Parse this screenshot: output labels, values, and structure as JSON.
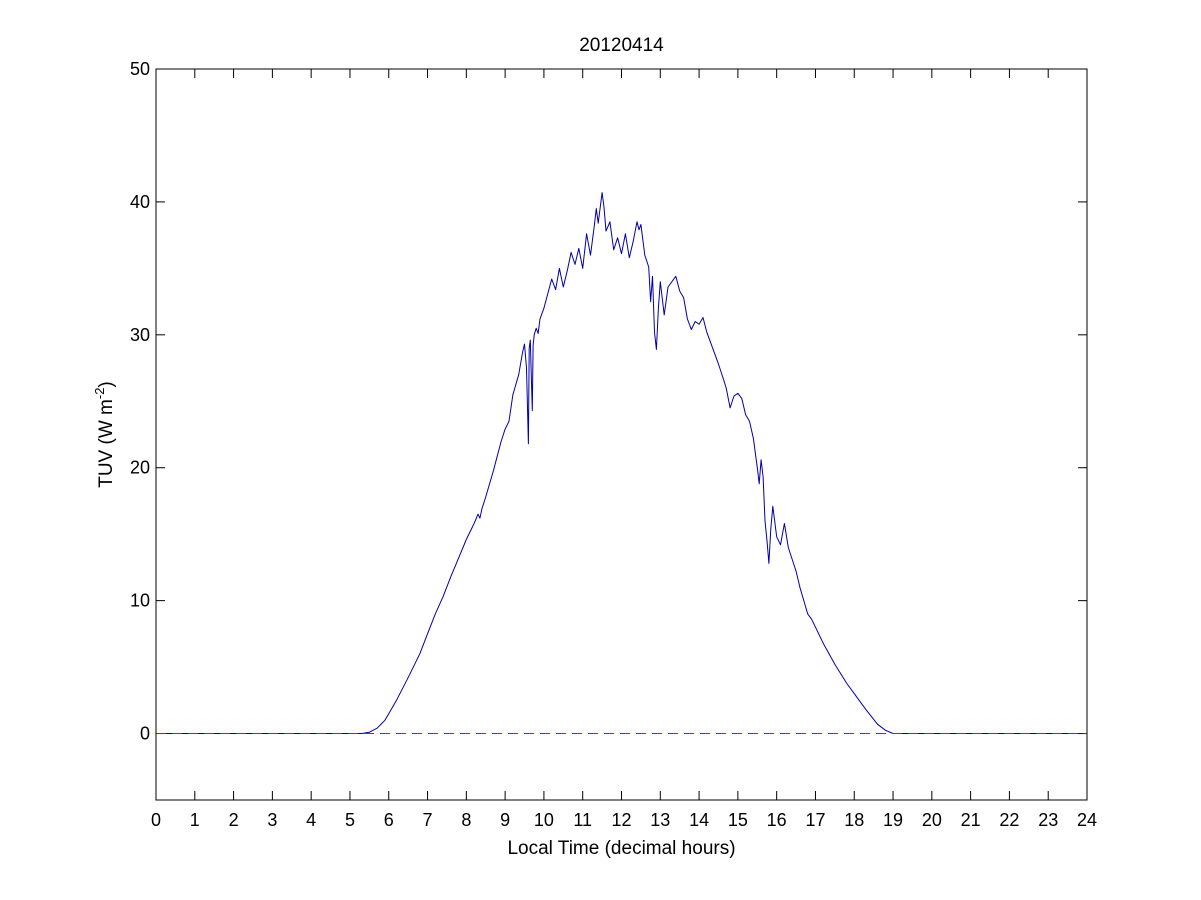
{
  "chart_data": {
    "type": "line",
    "title": "20120414",
    "xlabel": "Local Time (decimal hours)",
    "ylabel": {
      "prefix": "TUV (W m",
      "superscript": "-2",
      "suffix": ")"
    },
    "xlim": [
      0,
      24
    ],
    "ylim": [
      -5,
      50
    ],
    "xticks": [
      0,
      1,
      2,
      3,
      4,
      5,
      6,
      7,
      8,
      9,
      10,
      11,
      12,
      13,
      14,
      15,
      16,
      17,
      18,
      19,
      20,
      21,
      22,
      23,
      24
    ],
    "yticks": [
      0,
      10,
      20,
      30,
      40,
      50
    ],
    "grid": false,
    "legend": "none",
    "series": [
      {
        "color": "#0000aa",
        "style": "solid",
        "x": [
          0,
          5.3,
          5.5,
          5.7,
          5.9,
          6.0,
          6.2,
          6.5,
          6.8,
          7.0,
          7.2,
          7.4,
          7.6,
          7.8,
          8.0,
          8.2,
          8.3,
          8.35,
          8.4,
          8.5,
          8.7,
          8.9,
          9.0,
          9.1,
          9.2,
          9.35,
          9.45,
          9.5,
          9.55,
          9.6,
          9.62,
          9.65,
          9.7,
          9.72,
          9.75,
          9.8,
          9.85,
          9.9,
          10.0,
          10.1,
          10.2,
          10.3,
          10.4,
          10.5,
          10.6,
          10.7,
          10.8,
          10.9,
          11.0,
          11.1,
          11.2,
          11.3,
          11.35,
          11.4,
          11.5,
          11.55,
          11.6,
          11.7,
          11.8,
          11.9,
          12.0,
          12.1,
          12.2,
          12.3,
          12.4,
          12.45,
          12.5,
          12.6,
          12.7,
          12.75,
          12.8,
          12.85,
          12.9,
          12.95,
          13.0,
          13.1,
          13.2,
          13.3,
          13.4,
          13.5,
          13.6,
          13.7,
          13.8,
          13.9,
          14.0,
          14.1,
          14.2,
          14.3,
          14.4,
          14.5,
          14.6,
          14.7,
          14.8,
          14.9,
          15.0,
          15.1,
          15.2,
          15.3,
          15.4,
          15.5,
          15.55,
          15.6,
          15.65,
          15.7,
          15.75,
          15.8,
          15.85,
          15.9,
          16.0,
          16.1,
          16.2,
          16.3,
          16.4,
          16.5,
          16.6,
          16.7,
          16.8,
          16.9,
          17.0,
          17.2,
          17.5,
          17.8,
          18.0,
          18.3,
          18.6,
          18.8,
          19.0,
          19.2,
          24
        ],
        "y": [
          0,
          0,
          0.1,
          0.4,
          1.0,
          1.5,
          2.5,
          4.2,
          6.0,
          7.5,
          9.0,
          10.3,
          11.8,
          13.2,
          14.6,
          15.8,
          16.5,
          16.2,
          16.9,
          17.8,
          19.8,
          22.0,
          22.9,
          23.5,
          25.5,
          27.0,
          28.7,
          29.3,
          27.5,
          21.8,
          29.0,
          29.6,
          24.3,
          29.2,
          30.0,
          30.5,
          30.1,
          31.2,
          32.0,
          33.1,
          34.2,
          33.4,
          35.0,
          33.6,
          34.8,
          36.2,
          35.3,
          36.5,
          35.0,
          37.6,
          36.0,
          38.2,
          39.5,
          38.4,
          40.7,
          39.6,
          37.8,
          38.5,
          36.4,
          37.3,
          36.1,
          37.6,
          35.8,
          37.0,
          38.5,
          37.9,
          38.3,
          36.0,
          35.1,
          32.5,
          34.4,
          30.2,
          28.9,
          32.0,
          34.0,
          31.5,
          33.6,
          34.0,
          34.4,
          33.3,
          32.8,
          31.2,
          30.4,
          31.0,
          30.8,
          31.3,
          30.2,
          29.4,
          28.6,
          27.8,
          26.9,
          26.0,
          24.5,
          25.4,
          25.6,
          25.2,
          24.0,
          23.5,
          22.2,
          20.0,
          18.8,
          20.6,
          19.3,
          16.0,
          14.5,
          12.8,
          15.4,
          17.1,
          14.8,
          14.2,
          15.8,
          14.0,
          13.1,
          12.2,
          11.0,
          10.0,
          9.0,
          8.6,
          8.0,
          6.8,
          5.2,
          3.8,
          3.0,
          1.8,
          0.7,
          0.25,
          0.0,
          0,
          0
        ]
      },
      {
        "color": "#ff0000",
        "style": "dashed",
        "x": [
          0,
          24
        ],
        "y": [
          0,
          0
        ]
      }
    ]
  }
}
